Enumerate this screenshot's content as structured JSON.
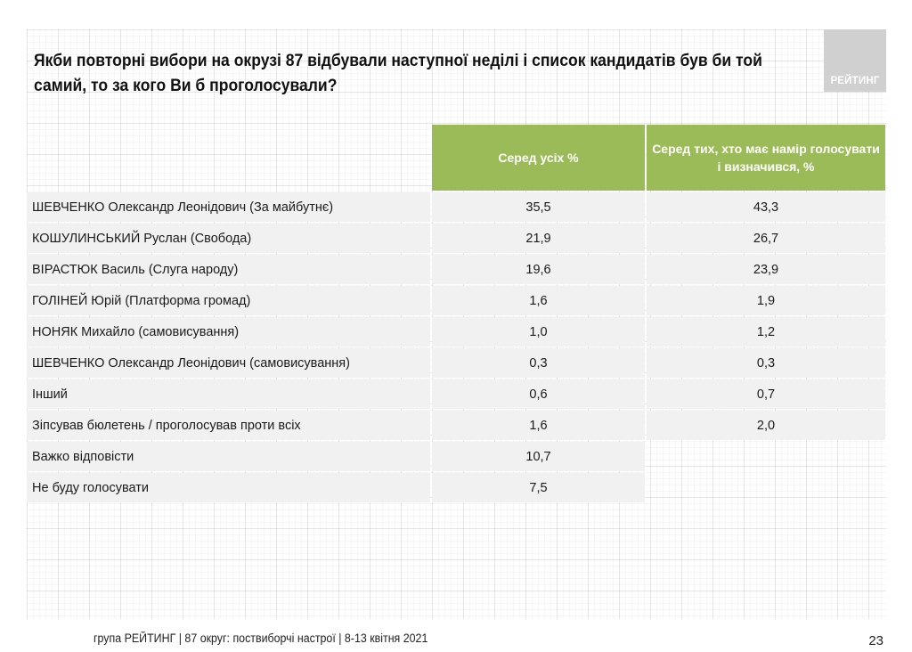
{
  "title": "Якби повторні вибори на окрузі 87 відбували наступної неділі і список кандидатів був би той самий, то за кого Ви б проголосували?",
  "logo_text": "РЕЙТИНГ",
  "colors": {
    "header_green": "#9bbb59",
    "row_gray": "#f1f1f1",
    "logo_gray": "#d0d0d0"
  },
  "table": {
    "columns": [
      "Серед усіх %",
      "Серед тих, хто має намір голосувати і визначився, %"
    ],
    "rows": [
      {
        "label": "ШЕВЧЕНКО Олександр Леонідович (За майбутнє)",
        "all": "35,5",
        "decided": "43,3"
      },
      {
        "label": "КОШУЛИНСЬКИЙ Руслан (Свобода)",
        "all": "21,9",
        "decided": "26,7"
      },
      {
        "label": "ВІРАСТЮК Василь (Слуга народу)",
        "all": "19,6",
        "decided": "23,9"
      },
      {
        "label": "ГОЛІНЕЙ Юрій (Платформа громад)",
        "all": "1,6",
        "decided": "1,9"
      },
      {
        "label": "НОНЯК Михайло (самовисування)",
        "all": "1,0",
        "decided": "1,2"
      },
      {
        "label": "ШЕВЧЕНКО Олександр Леонідович (самовисування)",
        "all": "0,3",
        "decided": "0,3"
      },
      {
        "label": "Інший",
        "all": "0,6",
        "decided": "0,7"
      },
      {
        "label": "Зіпсував бюлетень / проголосував проти всіх",
        "all": "1,6",
        "decided": "2,0"
      },
      {
        "label": "Важко відповісти",
        "all": "10,7",
        "decided": null
      },
      {
        "label": "Не буду голосувати",
        "all": "7,5",
        "decided": null
      }
    ]
  },
  "footer": {
    "text": "група РЕЙТИНГ  | 87 округ: поствиборчі настрої | 8-13 квітня 2021",
    "page_number": "23"
  }
}
